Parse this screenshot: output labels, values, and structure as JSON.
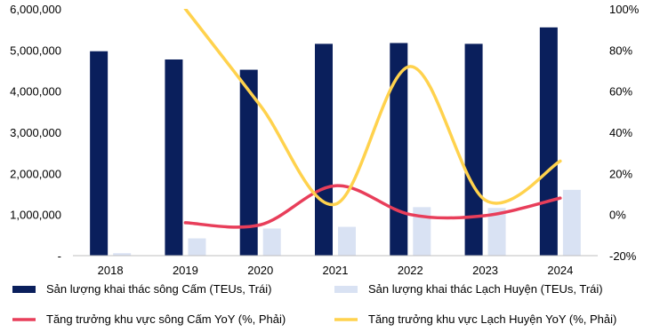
{
  "chart_data": {
    "type": "bar",
    "categories": [
      "2018",
      "2019",
      "2020",
      "2021",
      "2022",
      "2023",
      "2024"
    ],
    "y_left": {
      "ticks": [
        0,
        1000000,
        2000000,
        3000000,
        4000000,
        5000000,
        6000000
      ],
      "tick_labels": [
        "-",
        "1,000,000",
        "2,000,000",
        "3,000,000",
        "4,000,000",
        "5,000,000",
        "6,000,000"
      ],
      "ylim": [
        0,
        6000000
      ]
    },
    "y_right": {
      "ticks": [
        -20,
        0,
        20,
        40,
        60,
        80,
        100
      ],
      "tick_labels": [
        "-20%",
        "0%",
        "20%",
        "40%",
        "60%",
        "80%",
        "100%"
      ],
      "ylim": [
        -20,
        100
      ]
    },
    "bar_series": [
      {
        "name": "Sản lượng khai thác sông Cấm (TEUs, Trái)",
        "color": "#0a1f5c",
        "axis": "left",
        "values": [
          4970000,
          4770000,
          4520000,
          5150000,
          5170000,
          5150000,
          5550000
        ]
      },
      {
        "name": "Sản lượng khai thác Lạch Huyện (TEUs, Trái)",
        "color": "#d9e2f3",
        "axis": "left",
        "values": [
          60000,
          420000,
          660000,
          700000,
          1180000,
          1160000,
          1600000
        ]
      }
    ],
    "line_series": [
      {
        "name": "Tăng trưởng khu vực sông Cấm YoY (%, Phải)",
        "color": "#e83e5a",
        "axis": "right",
        "values": [
          null,
          -4,
          -5,
          14,
          0,
          -0.5,
          8
        ]
      },
      {
        "name": "Tăng trưởng khu vực Lạch Huyện YoY (%, Phải)",
        "color": "#ffd24d",
        "axis": "right",
        "values": [
          null,
          100,
          53,
          5,
          72,
          7,
          26
        ]
      }
    ],
    "grid": false,
    "legend_position": "bottom"
  }
}
